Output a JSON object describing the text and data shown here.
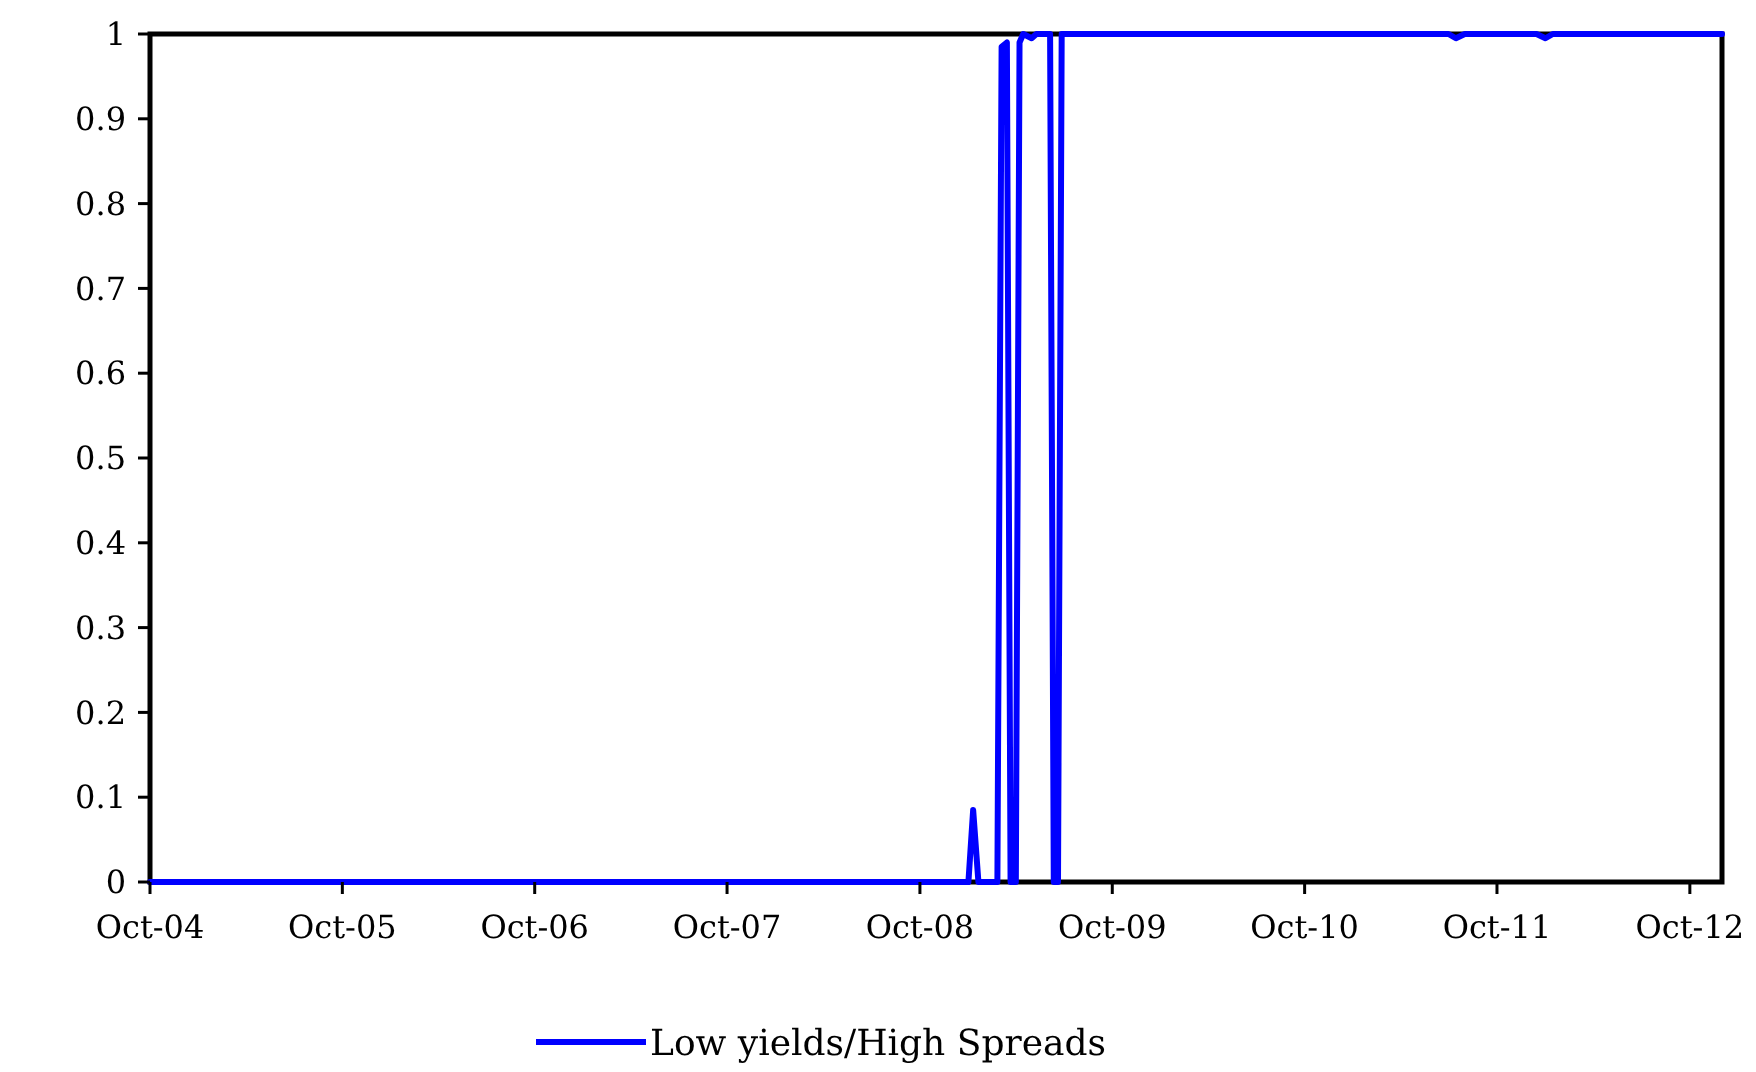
{
  "chart_data": {
    "type": "line",
    "xlim": [
      "2004-10-01",
      "2012-12-01"
    ],
    "xticks": [
      {
        "value": "2004-10-01",
        "label": "Oct-04"
      },
      {
        "value": "2005-10-01",
        "label": "Oct-05"
      },
      {
        "value": "2006-10-01",
        "label": "Oct-06"
      },
      {
        "value": "2007-10-01",
        "label": "Oct-07"
      },
      {
        "value": "2008-10-01",
        "label": "Oct-08"
      },
      {
        "value": "2009-10-01",
        "label": "Oct-09"
      },
      {
        "value": "2010-10-01",
        "label": "Oct-10"
      },
      {
        "value": "2011-10-01",
        "label": "Oct-11"
      },
      {
        "value": "2012-10-01",
        "label": "Oct-12"
      }
    ],
    "ylim": [
      0,
      1
    ],
    "yticks": [
      0,
      0.1,
      0.2,
      0.3,
      0.4,
      0.5,
      0.6,
      0.7,
      0.8,
      0.9,
      1
    ],
    "legend": "bottom",
    "grid": false,
    "line_style": "solid",
    "series": [
      {
        "name": "Low yields/High Spreads",
        "color": "#0000ff",
        "x": [
          "2004-10-01",
          "2009-01-01",
          "2009-01-10",
          "2009-01-20",
          "2009-02-25",
          "2009-03-05",
          "2009-03-15",
          "2009-03-22",
          "2009-04-01",
          "2009-04-08",
          "2009-04-15",
          "2009-05-01",
          "2009-05-10",
          "2009-06-05",
          "2009-06-12",
          "2009-06-20",
          "2009-06-27",
          "2011-07-01",
          "2011-07-15",
          "2011-08-01",
          "2011-12-15",
          "2012-01-01",
          "2012-01-15",
          "2012-12-01"
        ],
        "values": [
          0,
          0,
          0.085,
          0,
          0,
          0.985,
          0.99,
          0,
          0,
          0.99,
          1,
          0.995,
          1,
          1,
          0,
          0,
          1,
          1,
          0.995,
          1,
          1,
          0.995,
          1,
          1
        ]
      }
    ]
  }
}
